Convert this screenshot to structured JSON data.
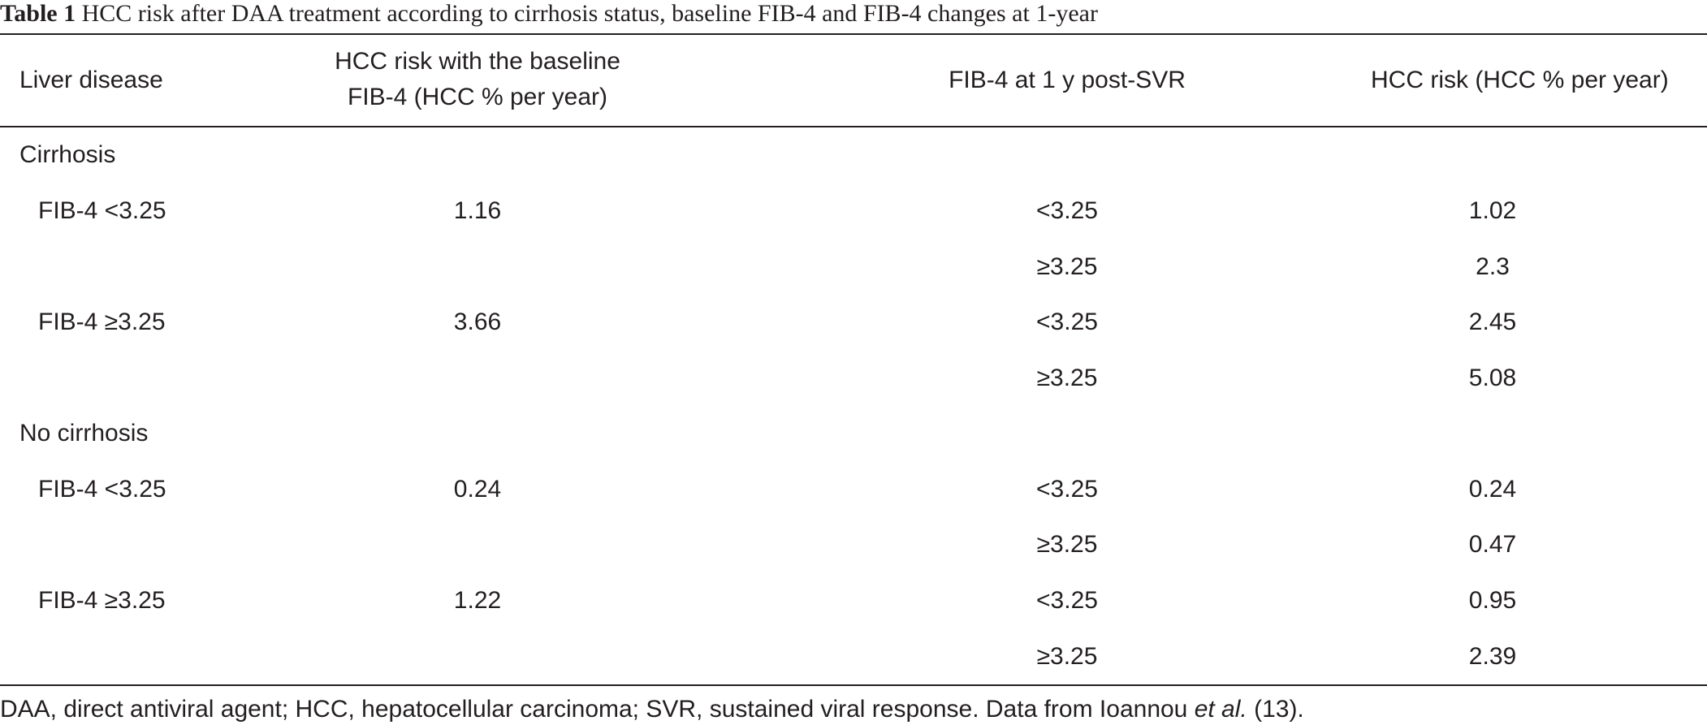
{
  "caption": {
    "label": "Table 1",
    "text": "HCC risk after DAA treatment according to cirrhosis status, baseline FIB-4 and FIB-4 changes at 1-year"
  },
  "headers": {
    "col1": "Liver disease",
    "col2_line1": "HCC risk with the baseline",
    "col2_line2": "FIB-4 (HCC % per year)",
    "col3": "FIB-4 at 1 y post-SVR",
    "col4": "HCC risk (HCC % per year)"
  },
  "groups": [
    {
      "name": "Cirrhosis",
      "rows": [
        {
          "baseline": "FIB-4 <3.25",
          "baseline_risk": "1.16",
          "post_fib4": "<3.25",
          "risk": "1.02"
        },
        {
          "baseline": "",
          "baseline_risk": "",
          "post_fib4": "≥3.25",
          "risk": "2.3"
        },
        {
          "baseline": "FIB-4 ≥3.25",
          "baseline_risk": "3.66",
          "post_fib4": "<3.25",
          "risk": "2.45"
        },
        {
          "baseline": "",
          "baseline_risk": "",
          "post_fib4": "≥3.25",
          "risk": "5.08"
        }
      ]
    },
    {
      "name": "No cirrhosis",
      "rows": [
        {
          "baseline": "FIB-4 <3.25",
          "baseline_risk": "0.24",
          "post_fib4": "<3.25",
          "risk": "0.24"
        },
        {
          "baseline": "",
          "baseline_risk": "",
          "post_fib4": "≥3.25",
          "risk": "0.47"
        },
        {
          "baseline": "FIB-4 ≥3.25",
          "baseline_risk": "1.22",
          "post_fib4": "<3.25",
          "risk": "0.95"
        },
        {
          "baseline": "",
          "baseline_risk": "",
          "post_fib4": "≥3.25",
          "risk": "2.39"
        }
      ]
    }
  ],
  "footnote": {
    "text_before": "DAA, direct antiviral agent; HCC, hepatocellular carcinoma; SVR, sustained viral response. Data from Ioannou ",
    "italic": "et al.",
    "text_after": " (13)."
  }
}
